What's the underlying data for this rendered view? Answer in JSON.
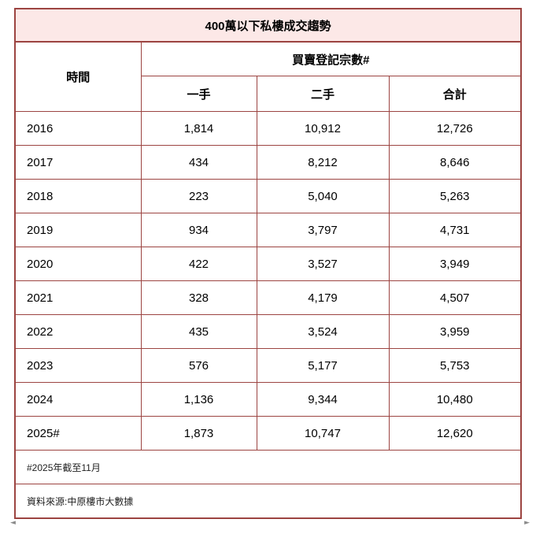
{
  "title": "400萬以下私樓成交趨勢",
  "header": {
    "time_label": "時間",
    "group_label": "買賣登記宗數#",
    "col_first": "一手",
    "col_second": "二手",
    "col_total": "合計"
  },
  "rows": [
    {
      "year": "2016",
      "first": "1,814",
      "second": "10,912",
      "total": "12,726"
    },
    {
      "year": "2017",
      "first": "434",
      "second": "8,212",
      "total": "8,646"
    },
    {
      "year": "2018",
      "first": "223",
      "second": "5,040",
      "total": "5,263"
    },
    {
      "year": "2019",
      "first": "934",
      "second": "3,797",
      "total": "4,731"
    },
    {
      "year": "2020",
      "first": "422",
      "second": "3,527",
      "total": "3,949"
    },
    {
      "year": "2021",
      "first": "328",
      "second": "4,179",
      "total": "4,507"
    },
    {
      "year": "2022",
      "first": "435",
      "second": "3,524",
      "total": "3,959"
    },
    {
      "year": "2023",
      "first": "576",
      "second": "5,177",
      "total": "5,753"
    },
    {
      "year": "2024",
      "first": "1,136",
      "second": "9,344",
      "total": "10,480"
    },
    {
      "year": "2025#",
      "first": "1,873",
      "second": "10,747",
      "total": "12,620"
    }
  ],
  "footnote": "#2025年截至11月",
  "source": "資料來源:中原樓市大數據",
  "scrollbar": {
    "left_arrow": "◄",
    "right_arrow": "►"
  },
  "colors": {
    "border": "#9c4441",
    "title_bg": "#fce8e7",
    "text": "#000000",
    "footnote_text": "#222222",
    "scroll_arrow": "#8a8a8a"
  },
  "chart_data": {
    "type": "table",
    "title": "400萬以下私樓成交趨勢",
    "column_group": {
      "label": "買賣登記宗數#",
      "spans": [
        "一手",
        "二手",
        "合計"
      ]
    },
    "columns": [
      "時間",
      "一手",
      "二手",
      "合計"
    ],
    "rows": [
      [
        "2016",
        1814,
        10912,
        12726
      ],
      [
        "2017",
        434,
        8212,
        8646
      ],
      [
        "2018",
        223,
        5040,
        5263
      ],
      [
        "2019",
        934,
        3797,
        4731
      ],
      [
        "2020",
        422,
        3527,
        3949
      ],
      [
        "2021",
        328,
        4179,
        4507
      ],
      [
        "2022",
        435,
        3524,
        3959
      ],
      [
        "2023",
        576,
        5177,
        5753
      ],
      [
        "2024",
        1136,
        9344,
        10480
      ],
      [
        "2025#",
        1873,
        10747,
        12620
      ]
    ],
    "footnotes": [
      "#2025年截至11月",
      "資料來源:中原樓市大數據"
    ]
  }
}
